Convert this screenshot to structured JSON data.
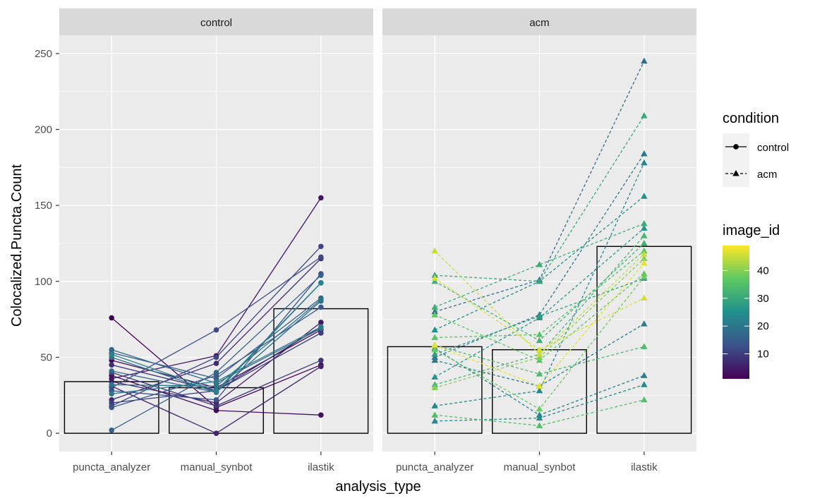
{
  "chart_data": {
    "type": "line",
    "xlabel": "analysis_type",
    "ylabel": "Colocalized.Puncta.Count",
    "categories": [
      "puncta_analyzer",
      "manual_synbot",
      "ilastik"
    ],
    "ylim": [
      -12,
      262
    ],
    "y_ticks": [
      0,
      50,
      100,
      150,
      200,
      250
    ],
    "grid": true,
    "legend_position": "right",
    "legend": {
      "condition": {
        "title": "condition",
        "entries": [
          {
            "label": "control",
            "shape": "circle",
            "linetype": "solid"
          },
          {
            "label": "acm",
            "shape": "triangle",
            "linetype": "dashed"
          }
        ]
      },
      "image_id": {
        "title": "image_id",
        "tick_labels": [
          "40",
          "30",
          "20",
          "10"
        ],
        "tick_values": [
          40,
          30,
          20,
          10
        ],
        "range": [
          1,
          49
        ],
        "colors": [
          "#440154",
          "#3b528b",
          "#21908c",
          "#5dc863",
          "#fde725"
        ]
      }
    },
    "panels": [
      {
        "strip": "control",
        "condition": "control",
        "bar_means": [
          34,
          30,
          82
        ],
        "series": [
          {
            "image_id": 1,
            "values": [
              76,
              17,
              45
            ]
          },
          {
            "image_id": 2,
            "values": [
              48,
              30,
              68
            ]
          },
          {
            "image_id": 3,
            "values": [
              38,
              15,
              12
            ]
          },
          {
            "image_id": 4,
            "values": [
              36,
              51,
              155
            ]
          },
          {
            "image_id": 5,
            "values": [
              34,
              20,
              73
            ]
          },
          {
            "image_id": 6,
            "values": [
              31,
              0,
              44
            ]
          },
          {
            "image_id": 7,
            "values": [
              22,
              46,
              115
            ]
          },
          {
            "image_id": 8,
            "values": [
              45,
              28,
              70
            ]
          },
          {
            "image_id": 9,
            "values": [
              40,
              18,
              48
            ]
          },
          {
            "image_id": 10,
            "values": [
              20,
              28,
              66
            ]
          },
          {
            "image_id": 11,
            "values": [
              18,
              50,
              123
            ]
          },
          {
            "image_id": 12,
            "values": [
              30,
              68,
              116
            ]
          },
          {
            "image_id": 13,
            "values": [
              28,
              22,
              105
            ]
          },
          {
            "image_id": 14,
            "values": [
              17,
              38,
              83
            ]
          },
          {
            "image_id": 15,
            "values": [
              53,
              36,
              89
            ]
          },
          {
            "image_id": 16,
            "values": [
              2,
              40,
              104
            ]
          },
          {
            "image_id": 17,
            "values": [
              55,
              33,
              69
            ]
          },
          {
            "image_id": 18,
            "values": [
              41,
              27,
              87
            ]
          },
          {
            "image_id": 19,
            "values": [
              50,
              27,
              99
            ]
          },
          {
            "image_id": 20,
            "values": [
              32,
              31,
              88
            ]
          },
          {
            "image_id": 21,
            "values": [
              26,
              34,
              70
            ]
          },
          {
            "image_id": 22,
            "values": [
              52,
              28,
              99
            ]
          }
        ]
      },
      {
        "strip": "acm",
        "condition": "acm",
        "bar_means": [
          57,
          55,
          123
        ],
        "series": [
          {
            "image_id": 18,
            "values": [
              80,
              101,
              245
            ]
          },
          {
            "image_id": 20,
            "values": [
              50,
              78,
              184
            ]
          },
          {
            "image_id": 21,
            "values": [
              48,
              31,
              72
            ]
          },
          {
            "image_id": 22,
            "values": [
              56,
              12,
              38
            ]
          },
          {
            "image_id": 23,
            "values": [
              18,
              28,
              178
            ]
          },
          {
            "image_id": 24,
            "values": [
              8,
              10,
              32
            ]
          },
          {
            "image_id": 25,
            "values": [
              68,
              100,
              156
            ]
          },
          {
            "image_id": 26,
            "values": [
              37,
              76,
              135
            ]
          },
          {
            "image_id": 28,
            "values": [
              52,
              77,
              102
            ]
          },
          {
            "image_id": 30,
            "values": [
              104,
              100,
              209
            ]
          },
          {
            "image_id": 31,
            "values": [
              83,
              111,
              138
            ]
          },
          {
            "image_id": 32,
            "values": [
              100,
              61,
              125
            ]
          },
          {
            "image_id": 33,
            "values": [
              32,
              52,
              130
            ]
          },
          {
            "image_id": 34,
            "values": [
              58,
              39,
              57
            ]
          },
          {
            "image_id": 35,
            "values": [
              12,
              5,
              22
            ]
          },
          {
            "image_id": 36,
            "values": [
              63,
              65,
              120
            ]
          },
          {
            "image_id": 37,
            "values": [
              78,
              48,
              105
            ]
          },
          {
            "image_id": 38,
            "values": [
              55,
              16,
              103
            ]
          },
          {
            "image_id": 40,
            "values": [
              30,
              50,
              115
            ]
          },
          {
            "image_id": 45,
            "values": [
              120,
              52,
              118
            ]
          },
          {
            "image_id": 46,
            "values": [
              102,
              55,
              89
            ]
          },
          {
            "image_id": 47,
            "values": [
              58,
              31,
              112
            ]
          }
        ]
      }
    ]
  }
}
